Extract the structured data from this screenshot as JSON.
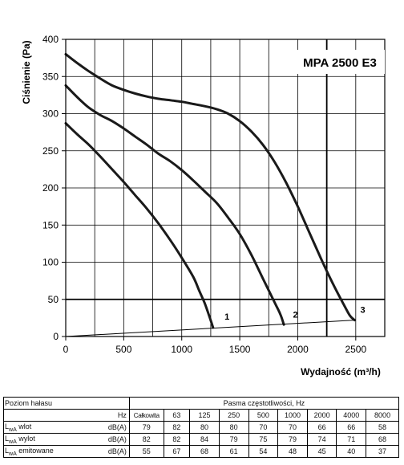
{
  "chart_data": {
    "type": "line",
    "model_label": "MPA 2500 E3",
    "xlabel": "Wydajność (m³/h)",
    "ylabel": "Ciśnienie (Pa)",
    "xlim": [
      0,
      2750
    ],
    "ylim": [
      0,
      400
    ],
    "xticks": [
      0,
      500,
      1000,
      1500,
      2000,
      2500
    ],
    "yticks": [
      0,
      50,
      100,
      150,
      200,
      250,
      300,
      350,
      400
    ],
    "grid": true,
    "reference_lines": {
      "y": 50,
      "x": 2250
    },
    "series": [
      {
        "name": "1",
        "points": [
          [
            0,
            287
          ],
          [
            100,
            272
          ],
          [
            200,
            258
          ],
          [
            300,
            242
          ],
          [
            400,
            225
          ],
          [
            500,
            208
          ],
          [
            600,
            190
          ],
          [
            700,
            172
          ],
          [
            800,
            152
          ],
          [
            900,
            130
          ],
          [
            1000,
            106
          ],
          [
            1100,
            80
          ],
          [
            1150,
            62
          ],
          [
            1200,
            44
          ],
          [
            1240,
            26
          ],
          [
            1270,
            12
          ]
        ]
      },
      {
        "name": "2",
        "points": [
          [
            0,
            338
          ],
          [
            100,
            322
          ],
          [
            200,
            308
          ],
          [
            300,
            298
          ],
          [
            400,
            290
          ],
          [
            500,
            280
          ],
          [
            600,
            269
          ],
          [
            700,
            258
          ],
          [
            800,
            246
          ],
          [
            900,
            236
          ],
          [
            1000,
            224
          ],
          [
            1100,
            210
          ],
          [
            1200,
            195
          ],
          [
            1300,
            180
          ],
          [
            1400,
            160
          ],
          [
            1500,
            138
          ],
          [
            1600,
            110
          ],
          [
            1700,
            78
          ],
          [
            1800,
            46
          ],
          [
            1850,
            30
          ],
          [
            1880,
            16
          ]
        ]
      },
      {
        "name": "3",
        "points": [
          [
            0,
            380
          ],
          [
            100,
            368
          ],
          [
            200,
            357
          ],
          [
            300,
            347
          ],
          [
            400,
            338
          ],
          [
            500,
            332
          ],
          [
            600,
            327
          ],
          [
            700,
            323
          ],
          [
            800,
            320
          ],
          [
            900,
            318
          ],
          [
            1000,
            316
          ],
          [
            1100,
            313
          ],
          [
            1200,
            310
          ],
          [
            1300,
            306
          ],
          [
            1400,
            300
          ],
          [
            1500,
            290
          ],
          [
            1600,
            276
          ],
          [
            1700,
            258
          ],
          [
            1800,
            235
          ],
          [
            1900,
            207
          ],
          [
            2000,
            175
          ],
          [
            2100,
            140
          ],
          [
            2200,
            105
          ],
          [
            2300,
            72
          ],
          [
            2400,
            42
          ],
          [
            2450,
            28
          ],
          [
            2490,
            22
          ]
        ]
      }
    ],
    "system_line": [
      [
        0,
        0
      ],
      [
        2490,
        22
      ]
    ],
    "curve_labels": [
      {
        "text": "1",
        "x": 1390,
        "y": 27
      },
      {
        "text": "2",
        "x": 1980,
        "y": 30
      },
      {
        "text": "3",
        "x": 2560,
        "y": 36
      }
    ]
  },
  "noise_table": {
    "header_left": "Poziom hałasu",
    "header_center": "Pasma częstotliwości, Hz",
    "unit_row": {
      "unit": "Hz",
      "bands": [
        "Całkowita",
        "63",
        "125",
        "250",
        "500",
        "1000",
        "2000",
        "4000",
        "8000"
      ]
    },
    "rows": [
      {
        "label_main": "L",
        "label_sub": "wA",
        "label_rest": " wlot",
        "unit": "dB(A)",
        "values": [
          "79",
          "82",
          "80",
          "80",
          "70",
          "70",
          "66",
          "66",
          "58"
        ]
      },
      {
        "label_main": "L",
        "label_sub": "wA",
        "label_rest": " wylot",
        "unit": "dB(A)",
        "values": [
          "82",
          "82",
          "84",
          "79",
          "75",
          "79",
          "74",
          "71",
          "68"
        ]
      },
      {
        "label_main": "L",
        "label_sub": "wA",
        "label_rest": " emitowane",
        "unit": "dB(A)",
        "values": [
          "55",
          "67",
          "68",
          "61",
          "54",
          "48",
          "45",
          "40",
          "37"
        ]
      }
    ]
  }
}
